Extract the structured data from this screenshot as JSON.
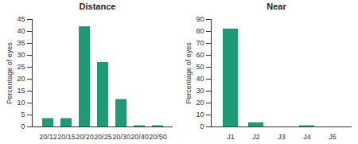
{
  "chart_data": [
    {
      "type": "bar",
      "title": "Distance",
      "ylabel": "Percentage of eyes",
      "categories": [
        "20/12",
        "20/15",
        "20/20",
        "20/25",
        "20/30",
        "20/40",
        "20/50"
      ],
      "values": [
        3.5,
        3.5,
        42,
        27,
        11.5,
        0.5,
        0.5
      ],
      "color": "#1f9a78",
      "ylim": [
        0,
        45
      ],
      "yticks": [
        0,
        5,
        10,
        15,
        20,
        25,
        30,
        35,
        40,
        45
      ]
    },
    {
      "type": "bar",
      "title": "Near",
      "ylabel": "Percentage of eyes",
      "categories": [
        "J1",
        "J2",
        "J3",
        "J4",
        "J5"
      ],
      "values": [
        82,
        3.5,
        0,
        1,
        0
      ],
      "color": "#1f9a78",
      "ylim": [
        0,
        90
      ],
      "yticks": [
        0,
        10,
        20,
        30,
        40,
        50,
        60,
        70,
        80,
        90
      ]
    }
  ]
}
